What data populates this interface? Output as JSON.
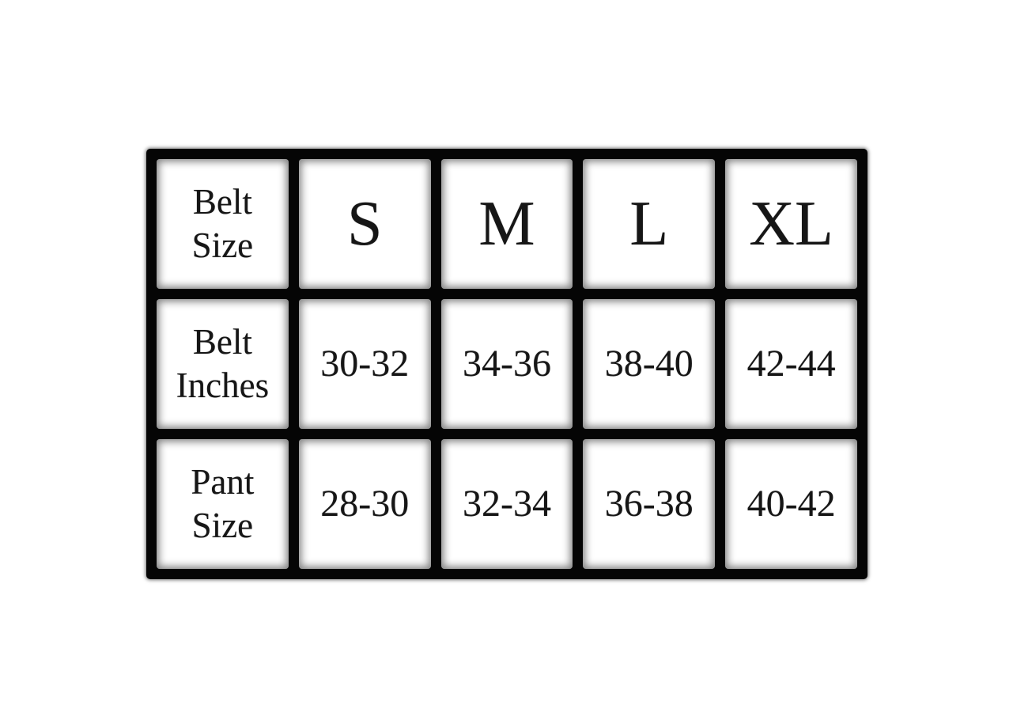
{
  "chart_data": {
    "type": "table",
    "columns": [
      "Belt Size",
      "S",
      "M",
      "L",
      "XL"
    ],
    "rows": [
      {
        "cells": [
          "Belt Inches",
          "30-32",
          "34-36",
          "38-40",
          "42-44"
        ]
      },
      {
        "cells": [
          "Pant Size",
          "28-30",
          "32-34",
          "36-38",
          "40-42"
        ]
      }
    ],
    "layout": "5 columns x 3 rows, heavy black gridlines, white cells with blurred inner edges"
  },
  "colors": {
    "background": "#ffffff",
    "grid": "#050505",
    "cell": "#ffffff",
    "text": "#161616"
  }
}
